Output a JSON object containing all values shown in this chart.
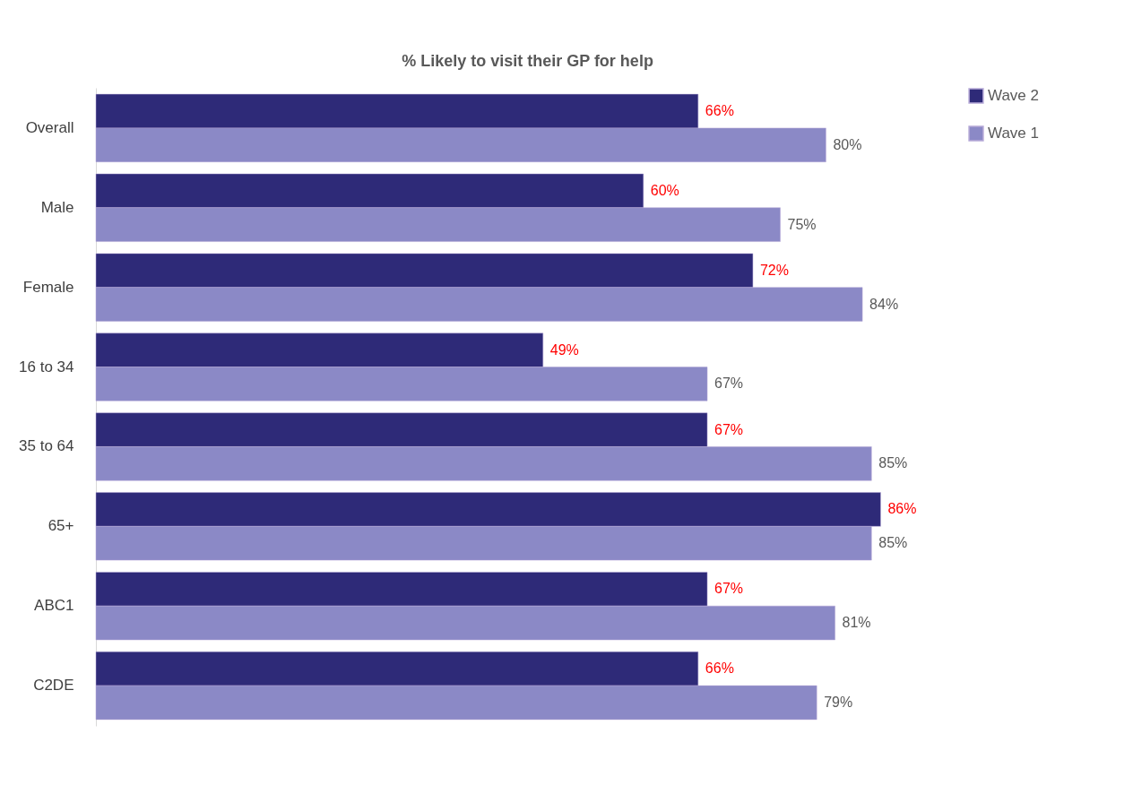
{
  "chart_data": {
    "type": "bar",
    "orientation": "horizontal",
    "title": "% Likely to visit their GP for help",
    "categories": [
      "Overall",
      "Male",
      "Female",
      "16 to 34",
      "35 to 64",
      "65+",
      "ABC1",
      "C2DE"
    ],
    "series": [
      {
        "name": "Wave 2",
        "color": "#2e2a78",
        "values": [
          66,
          60,
          72,
          49,
          67,
          86,
          67,
          66
        ],
        "value_labels": [
          "66%",
          "60%",
          "72%",
          "49%",
          "67%",
          "86%",
          "67%",
          "66%"
        ]
      },
      {
        "name": "Wave 1",
        "color": "#8b89c6",
        "values": [
          80,
          75,
          84,
          67,
          85,
          85,
          81,
          79
        ],
        "value_labels": [
          "80%",
          "75%",
          "84%",
          "67%",
          "85%",
          "85%",
          "81%",
          "79%"
        ]
      }
    ],
    "legend": "top right"
  }
}
